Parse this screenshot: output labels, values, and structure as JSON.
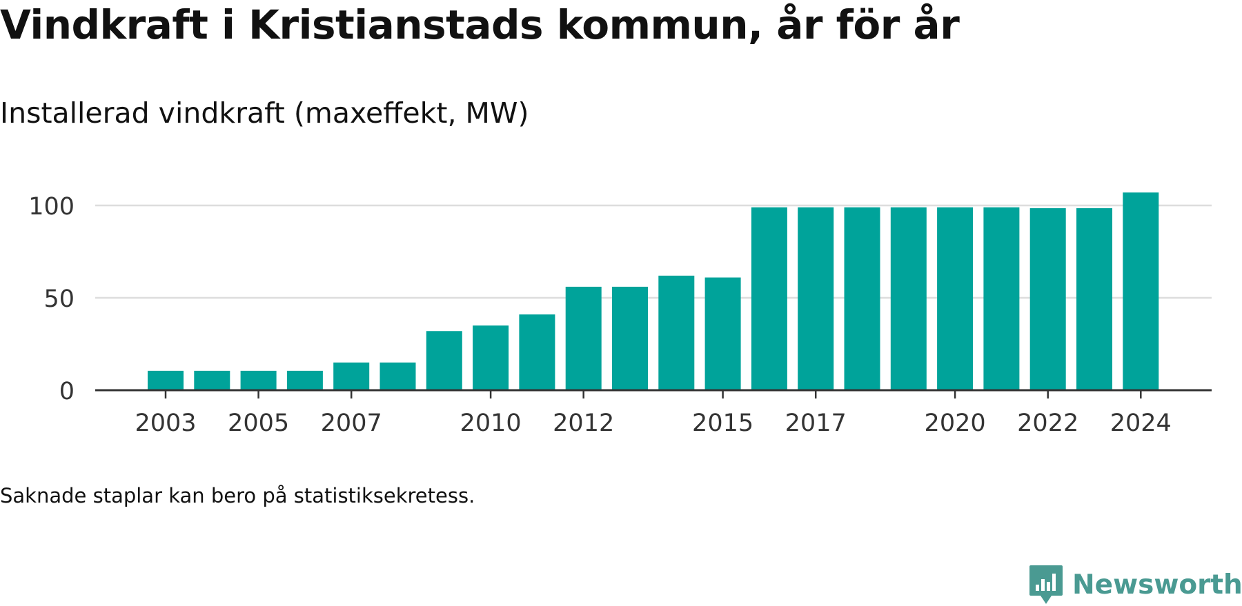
{
  "title": "Vindkraft i Kristianstads kommun, år för år",
  "subtitle": "Installerad vindkraft (maxeffekt, MW)",
  "footnote": "Saknade staplar kan bero på statistiksekretess.",
  "brand": {
    "name": "Newsworthy",
    "icon": "newsworthy-logo-icon",
    "color": "#4a9a92"
  },
  "colors": {
    "bar": "#00a39a",
    "grid": "#dddddd",
    "axis": "#333333",
    "text": "#333333"
  },
  "chart_data": {
    "type": "bar",
    "categories": [
      "2003",
      "2004",
      "2005",
      "2006",
      "2007",
      "2008",
      "2009",
      "2010",
      "2011",
      "2012",
      "2013",
      "2014",
      "2015",
      "2016",
      "2017",
      "2018",
      "2019",
      "2020",
      "2021",
      "2022",
      "2023",
      "2024"
    ],
    "values": [
      10.5,
      10.5,
      10.5,
      10.5,
      15,
      15,
      32,
      35,
      41,
      56,
      56,
      62,
      61,
      99,
      99,
      99,
      99,
      99,
      99,
      98.5,
      98.5,
      107
    ],
    "x_tick_labels": [
      "2003",
      "2005",
      "2007",
      "2010",
      "2012",
      "2015",
      "2017",
      "2020",
      "2022",
      "2024"
    ],
    "y_ticks": [
      0,
      50,
      100
    ],
    "ylim": [
      0,
      110
    ],
    "xlabel": "",
    "ylabel": "",
    "grid": true,
    "legend": "none"
  }
}
